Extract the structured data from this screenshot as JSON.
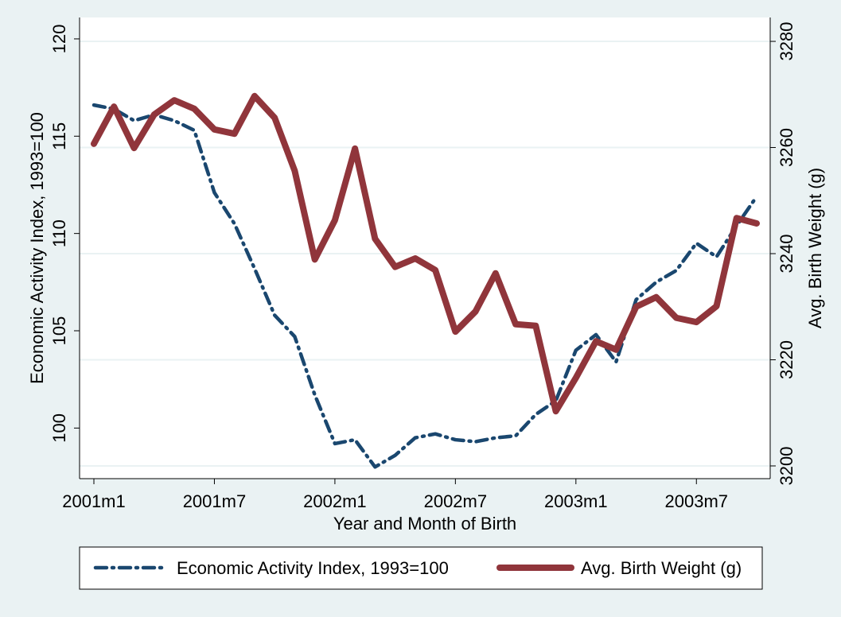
{
  "chart_data": {
    "type": "line",
    "x_label": "Year and Month of Birth",
    "y_label": "Economic Activity Index, 1993=100",
    "y2_label": "Avg. Birth Weight (g)",
    "categories": [
      "2001m1",
      null,
      null,
      null,
      null,
      null,
      "2001m7",
      null,
      null,
      null,
      null,
      null,
      "2002m1",
      null,
      null,
      null,
      null,
      null,
      "2002m7",
      null,
      null,
      null,
      null,
      null,
      "2003m1",
      null,
      null,
      null,
      null,
      null,
      "2003m7",
      null,
      null,
      null
    ],
    "series": [
      {
        "name": "Economic Activity Index, 1993=100",
        "color": "#1a476f",
        "axis": "y",
        "values": [
          116.6,
          116.4,
          115.8,
          116.1,
          115.8,
          115.3,
          112.1,
          110.5,
          108.2,
          105.8,
          104.7,
          101.7,
          99.2,
          99.4,
          98.0,
          98.6,
          99.5,
          99.7,
          99.4,
          99.3,
          99.5,
          99.6,
          100.7,
          101.4,
          104.0,
          104.8,
          103.4,
          106.6,
          107.5,
          108.1,
          109.5,
          108.8,
          110.4,
          111.9
        ]
      },
      {
        "name": "Avg. Birth Weight (g)",
        "color": "#90353b",
        "axis": "y2",
        "values": [
          3260.7,
          3267.7,
          3259.9,
          3266.2,
          3268.9,
          3267.3,
          3263.4,
          3262.6,
          3269.7,
          3265.6,
          3255.6,
          3238.9,
          3246.3,
          3259.8,
          3242.8,
          3237.5,
          3239.1,
          3236.9,
          3225.3,
          3229.1,
          3236.3,
          3226.7,
          3226.4,
          3210.3,
          3216.6,
          3223.5,
          3221.9,
          3230.0,
          3231.8,
          3227.9,
          3227.1,
          3230.1,
          3246.7,
          3245.7
        ]
      }
    ],
    "ylim": [
      97.4,
      121.1
    ],
    "yticks": [
      100,
      105,
      110,
      115,
      120
    ],
    "y2lim": [
      3197.6,
      3284.5
    ],
    "y2ticks": [
      3200,
      3220,
      3240,
      3260,
      3280
    ],
    "grid": true,
    "legend": "bottom"
  }
}
